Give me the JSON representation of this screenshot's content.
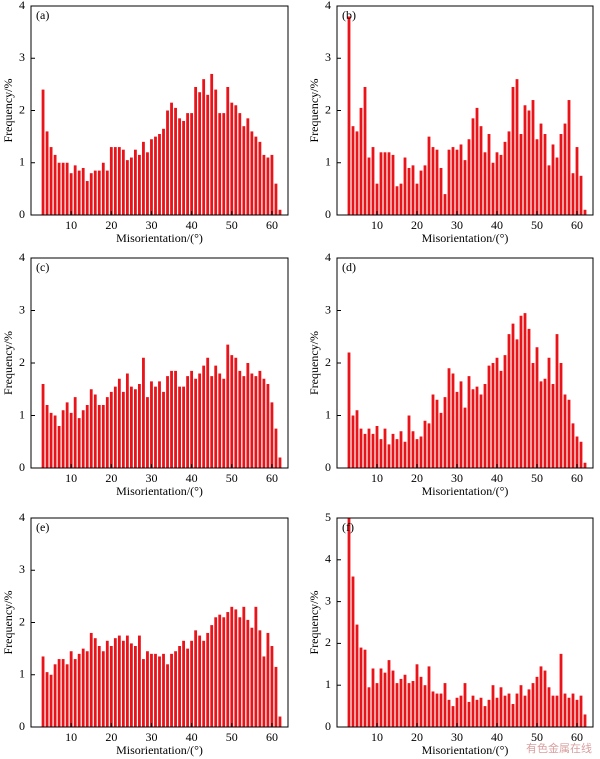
{
  "chart_data": [
    {
      "type": "histogram",
      "label": "(a)",
      "xlabel": "Misorientation/(°)",
      "ylabel": "Frequency/%",
      "color": "#e8141a",
      "bins": [
        2.5,
        3.5,
        4.5,
        5.5,
        6.5,
        7.5,
        8.5,
        9.5,
        10.5,
        11.5,
        12.5,
        13.5,
        14.5,
        15.5,
        16.5,
        17.5,
        18.5,
        19.5,
        20.5,
        21.5,
        22.5,
        23.5,
        24.5,
        25.5,
        26.5,
        27.5,
        28.5,
        29.5,
        30.5,
        31.5,
        32.5,
        33.5,
        34.5,
        35.5,
        36.5,
        37.5,
        38.5,
        39.5,
        40.5,
        41.5,
        42.5,
        43.5,
        44.5,
        45.5,
        46.5,
        47.5,
        48.5,
        49.5,
        50.5,
        51.5,
        52.5,
        53.5,
        54.5,
        55.5,
        56.5,
        57.5,
        58.5,
        59.5,
        60.5,
        61.5,
        62.5
      ],
      "values": [
        2.4,
        1.6,
        1.3,
        1.15,
        1.0,
        1.0,
        1.0,
        0.8,
        0.95,
        0.85,
        0.9,
        0.65,
        0.8,
        0.85,
        0.85,
        1.0,
        0.85,
        1.3,
        1.3,
        1.3,
        1.25,
        1.05,
        1.1,
        1.25,
        1.15,
        1.4,
        1.2,
        1.45,
        1.5,
        1.55,
        1.65,
        2.0,
        2.15,
        2.05,
        1.85,
        1.8,
        1.95,
        1.95,
        2.45,
        2.35,
        2.6,
        2.3,
        2.7,
        2.4,
        1.95,
        1.95,
        2.45,
        2.15,
        2.1,
        1.95,
        1.7,
        1.85,
        1.6,
        1.5,
        1.4,
        1.15,
        1.1,
        1.15,
        0.6,
        0.1
      ],
      "xlim": [
        0,
        64
      ],
      "ylim": [
        0,
        4
      ],
      "xticks": [
        10,
        20,
        30,
        40,
        50,
        60
      ],
      "yticks": [
        0,
        1,
        2,
        3,
        4
      ]
    },
    {
      "type": "histogram",
      "label": "(b)",
      "xlabel": "Misorientation/(°)",
      "ylabel": "Frequency/%",
      "color": "#e8141a",
      "bins": [
        2.5,
        3.5,
        4.5,
        5.5,
        6.5,
        7.5,
        8.5,
        9.5,
        10.5,
        11.5,
        12.5,
        13.5,
        14.5,
        15.5,
        16.5,
        17.5,
        18.5,
        19.5,
        20.5,
        21.5,
        22.5,
        23.5,
        24.5,
        25.5,
        26.5,
        27.5,
        28.5,
        29.5,
        30.5,
        31.5,
        32.5,
        33.5,
        34.5,
        35.5,
        36.5,
        37.5,
        38.5,
        39.5,
        40.5,
        41.5,
        42.5,
        43.5,
        44.5,
        45.5,
        46.5,
        47.5,
        48.5,
        49.5,
        50.5,
        51.5,
        52.5,
        53.5,
        54.5,
        55.5,
        56.5,
        57.5,
        58.5,
        59.5,
        60.5,
        61.5,
        62.5
      ],
      "values": [
        3.8,
        1.7,
        1.6,
        2.05,
        2.45,
        1.1,
        1.3,
        0.6,
        1.2,
        1.2,
        1.2,
        1.15,
        0.55,
        0.6,
        1.1,
        0.9,
        0.95,
        0.6,
        0.85,
        0.95,
        1.5,
        1.3,
        1.25,
        0.9,
        0.4,
        1.25,
        1.3,
        1.25,
        1.35,
        1.05,
        1.45,
        1.85,
        2.05,
        1.7,
        1.2,
        1.55,
        1.0,
        1.2,
        1.15,
        1.4,
        1.6,
        2.45,
        2.6,
        1.55,
        2.1,
        2.0,
        2.2,
        1.45,
        1.75,
        1.55,
        0.95,
        1.35,
        1.1,
        1.55,
        1.75,
        2.2,
        0.8,
        1.3,
        0.75,
        0.1
      ],
      "xlim": [
        0,
        64
      ],
      "ylim": [
        0,
        4
      ],
      "xticks": [
        10,
        20,
        30,
        40,
        50,
        60
      ],
      "yticks": [
        0,
        1,
        2,
        3,
        4
      ]
    },
    {
      "type": "histogram",
      "label": "(c)",
      "xlabel": "Misorientation/(°)",
      "ylabel": "Frequency/%",
      "color": "#e8141a",
      "bins": [
        2.5,
        3.5,
        4.5,
        5.5,
        6.5,
        7.5,
        8.5,
        9.5,
        10.5,
        11.5,
        12.5,
        13.5,
        14.5,
        15.5,
        16.5,
        17.5,
        18.5,
        19.5,
        20.5,
        21.5,
        22.5,
        23.5,
        24.5,
        25.5,
        26.5,
        27.5,
        28.5,
        29.5,
        30.5,
        31.5,
        32.5,
        33.5,
        34.5,
        35.5,
        36.5,
        37.5,
        38.5,
        39.5,
        40.5,
        41.5,
        42.5,
        43.5,
        44.5,
        45.5,
        46.5,
        47.5,
        48.5,
        49.5,
        50.5,
        51.5,
        52.5,
        53.5,
        54.5,
        55.5,
        56.5,
        57.5,
        58.5,
        59.5,
        60.5,
        61.5,
        62.5
      ],
      "values": [
        1.6,
        1.2,
        1.05,
        1.0,
        0.8,
        1.1,
        1.25,
        1.05,
        1.35,
        0.95,
        1.1,
        1.2,
        1.5,
        1.4,
        1.2,
        1.2,
        1.35,
        1.45,
        1.55,
        1.7,
        1.45,
        1.8,
        1.55,
        1.5,
        1.6,
        2.1,
        1.35,
        1.65,
        1.55,
        1.65,
        1.45,
        1.75,
        1.85,
        1.85,
        1.55,
        1.55,
        1.75,
        1.85,
        1.7,
        1.8,
        1.95,
        2.1,
        1.75,
        1.95,
        1.8,
        1.7,
        2.35,
        2.15,
        2.1,
        1.85,
        1.75,
        2.0,
        1.8,
        1.75,
        1.85,
        1.7,
        1.6,
        1.25,
        0.75,
        0.2
      ],
      "xlim": [
        0,
        64
      ],
      "ylim": [
        0,
        4
      ],
      "xticks": [
        10,
        20,
        30,
        40,
        50,
        60
      ],
      "yticks": [
        0,
        1,
        2,
        3,
        4
      ]
    },
    {
      "type": "histogram",
      "label": "(d)",
      "xlabel": "Misorientation/(°)",
      "ylabel": "Frequency/%",
      "color": "#e8141a",
      "bins": [
        2.5,
        3.5,
        4.5,
        5.5,
        6.5,
        7.5,
        8.5,
        9.5,
        10.5,
        11.5,
        12.5,
        13.5,
        14.5,
        15.5,
        16.5,
        17.5,
        18.5,
        19.5,
        20.5,
        21.5,
        22.5,
        23.5,
        24.5,
        25.5,
        26.5,
        27.5,
        28.5,
        29.5,
        30.5,
        31.5,
        32.5,
        33.5,
        34.5,
        35.5,
        36.5,
        37.5,
        38.5,
        39.5,
        40.5,
        41.5,
        42.5,
        43.5,
        44.5,
        45.5,
        46.5,
        47.5,
        48.5,
        49.5,
        50.5,
        51.5,
        52.5,
        53.5,
        54.5,
        55.5,
        56.5,
        57.5,
        58.5,
        59.5,
        60.5,
        61.5,
        62.5
      ],
      "values": [
        2.2,
        1.0,
        1.1,
        0.75,
        0.65,
        0.75,
        0.65,
        0.8,
        0.55,
        0.75,
        0.45,
        0.65,
        0.55,
        0.7,
        0.5,
        1.0,
        0.7,
        0.55,
        0.6,
        0.9,
        0.85,
        1.4,
        1.3,
        1.05,
        1.35,
        1.9,
        1.8,
        1.45,
        1.65,
        1.15,
        1.75,
        1.5,
        1.55,
        1.4,
        1.6,
        1.95,
        2.0,
        2.1,
        1.85,
        2.15,
        2.55,
        2.75,
        2.45,
        2.9,
        2.95,
        2.65,
        2.0,
        2.3,
        1.65,
        1.7,
        2.1,
        1.6,
        2.55,
        2.0,
        1.4,
        1.3,
        0.85,
        0.6,
        0.5,
        0.1
      ],
      "xlim": [
        0,
        64
      ],
      "ylim": [
        0,
        4
      ],
      "xticks": [
        10,
        20,
        30,
        40,
        50,
        60
      ],
      "yticks": [
        0,
        1,
        2,
        3,
        4
      ]
    },
    {
      "type": "histogram",
      "label": "(e)",
      "xlabel": "Misorientation/(°)",
      "ylabel": "Frequency/%",
      "color": "#e8141a",
      "bins": [
        2.5,
        3.5,
        4.5,
        5.5,
        6.5,
        7.5,
        8.5,
        9.5,
        10.5,
        11.5,
        12.5,
        13.5,
        14.5,
        15.5,
        16.5,
        17.5,
        18.5,
        19.5,
        20.5,
        21.5,
        22.5,
        23.5,
        24.5,
        25.5,
        26.5,
        27.5,
        28.5,
        29.5,
        30.5,
        31.5,
        32.5,
        33.5,
        34.5,
        35.5,
        36.5,
        37.5,
        38.5,
        39.5,
        40.5,
        41.5,
        42.5,
        43.5,
        44.5,
        45.5,
        46.5,
        47.5,
        48.5,
        49.5,
        50.5,
        51.5,
        52.5,
        53.5,
        54.5,
        55.5,
        56.5,
        57.5,
        58.5,
        59.5,
        60.5,
        61.5,
        62.5
      ],
      "values": [
        1.35,
        1.05,
        1.0,
        1.2,
        1.3,
        1.3,
        1.2,
        1.45,
        1.3,
        1.4,
        1.5,
        1.45,
        1.8,
        1.7,
        1.55,
        1.45,
        1.65,
        1.55,
        1.7,
        1.75,
        1.65,
        1.75,
        1.6,
        1.55,
        1.75,
        1.3,
        1.45,
        1.4,
        1.4,
        1.35,
        1.4,
        1.2,
        1.4,
        1.45,
        1.55,
        1.65,
        1.5,
        1.65,
        1.85,
        1.75,
        1.65,
        1.8,
        1.95,
        2.1,
        2.15,
        2.1,
        2.2,
        2.3,
        2.25,
        2.1,
        2.3,
        2.05,
        1.9,
        2.3,
        1.85,
        1.35,
        1.8,
        1.55,
        1.15,
        0.2
      ],
      "xlim": [
        0,
        64
      ],
      "ylim": [
        0,
        4
      ],
      "xticks": [
        10,
        20,
        30,
        40,
        50,
        60
      ],
      "yticks": [
        0,
        1,
        2,
        3,
        4
      ]
    },
    {
      "type": "histogram",
      "label": "(f)",
      "xlabel": "Misorientation/(°)",
      "ylabel": "Frequency/%",
      "color": "#e8141a",
      "bins": [
        2.5,
        3.5,
        4.5,
        5.5,
        6.5,
        7.5,
        8.5,
        9.5,
        10.5,
        11.5,
        12.5,
        13.5,
        14.5,
        15.5,
        16.5,
        17.5,
        18.5,
        19.5,
        20.5,
        21.5,
        22.5,
        23.5,
        24.5,
        25.5,
        26.5,
        27.5,
        28.5,
        29.5,
        30.5,
        31.5,
        32.5,
        33.5,
        34.5,
        35.5,
        36.5,
        37.5,
        38.5,
        39.5,
        40.5,
        41.5,
        42.5,
        43.5,
        44.5,
        45.5,
        46.5,
        47.5,
        48.5,
        49.5,
        50.5,
        51.5,
        52.5,
        53.5,
        54.5,
        55.5,
        56.5,
        57.5,
        58.5,
        59.5,
        60.5,
        61.5,
        62.5
      ],
      "values": [
        5.0,
        3.6,
        2.45,
        1.9,
        1.85,
        0.95,
        1.4,
        1.05,
        1.4,
        1.3,
        1.6,
        1.35,
        1.05,
        1.15,
        1.25,
        1.05,
        1.1,
        1.5,
        1.2,
        1.0,
        1.45,
        0.85,
        0.8,
        0.8,
        1.05,
        0.65,
        0.5,
        0.7,
        0.75,
        1.05,
        0.6,
        0.75,
        0.65,
        0.7,
        0.5,
        0.65,
        1.0,
        0.7,
        0.95,
        0.75,
        0.8,
        0.55,
        0.8,
        1.0,
        0.75,
        0.9,
        1.05,
        1.2,
        1.45,
        1.35,
        0.95,
        0.75,
        0.75,
        1.75,
        0.8,
        0.7,
        0.8,
        0.65,
        0.75,
        0.3
      ],
      "xlim": [
        0,
        64
      ],
      "ylim": [
        0,
        5
      ],
      "xticks": [
        10,
        20,
        30,
        40,
        50,
        60
      ],
      "yticks": [
        0,
        1,
        2,
        3,
        4,
        5
      ]
    }
  ],
  "watermark": "有色金属在线"
}
